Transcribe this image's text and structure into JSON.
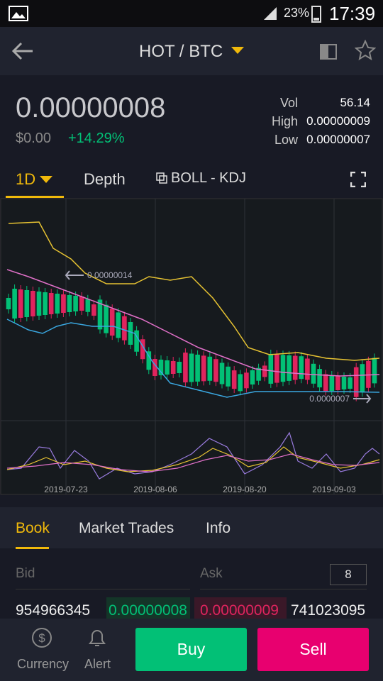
{
  "status_bar": {
    "battery": "23%",
    "time": "17:39"
  },
  "header": {
    "title": "HOT / BTC"
  },
  "ticker": {
    "price": "0.00000008",
    "fiat": "$0.00",
    "change": "+14.29%",
    "stats": [
      {
        "label": "Vol",
        "value": "56.14"
      },
      {
        "label": "High",
        "value": "0.00000009"
      },
      {
        "label": "Low",
        "value": "0.00000007"
      }
    ]
  },
  "chart_tabs": {
    "interval": "1D",
    "depth": "Depth",
    "indicators": "BOLL - KDJ"
  },
  "chart": {
    "max_marker": "0.00000014",
    "min_marker": "0.0000007",
    "dates": [
      "2019-07-23",
      "2019-08-06",
      "2019-08-20",
      "2019-09-03"
    ]
  },
  "book_tabs": [
    "Book",
    "Market Trades",
    "Info"
  ],
  "order_book": {
    "bid_header": "Bid",
    "ask_header": "Ask",
    "depth": "8",
    "rows": [
      {
        "bid_amount": "954966345",
        "bid_price": "0.00000008",
        "ask_price": "0.00000009",
        "ask_amount": "741023095"
      }
    ]
  },
  "bottom_bar": {
    "currency": "Currency",
    "alert": "Alert",
    "buy": "Buy",
    "sell": "Sell"
  }
}
